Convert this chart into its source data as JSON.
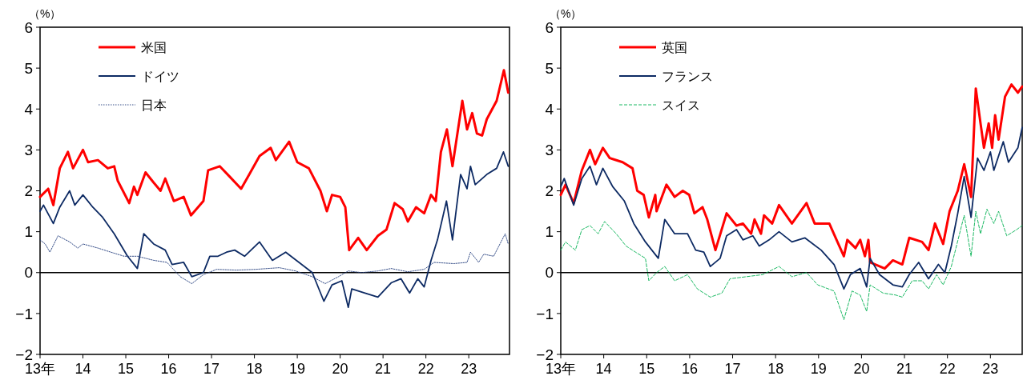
{
  "chart_data": [
    {
      "type": "line",
      "ylabel": "（%）",
      "xlim": [
        13,
        23.95
      ],
      "ylim": [
        -2,
        6
      ],
      "legend": "top left",
      "grid": false,
      "xticks": [
        {
          "value": 13,
          "label": "13年"
        },
        14,
        15,
        16,
        17,
        18,
        19,
        20,
        21,
        22,
        23
      ],
      "yticks": [
        -2,
        -1,
        0,
        1,
        2,
        3,
        4,
        5,
        6
      ],
      "ref_lines": [
        {
          "axis": "y",
          "value": 0,
          "color": "#000000"
        }
      ],
      "series": [
        {
          "name": "米国",
          "color": "#ff0000",
          "line_style": "solid",
          "x": [
            13,
            13.19,
            13.31,
            13.46,
            13.65,
            13.77,
            14,
            14.12,
            14.35,
            14.58,
            14.73,
            14.81,
            15.08,
            15.19,
            15.27,
            15.46,
            15.65,
            15.81,
            15.92,
            16.12,
            16.35,
            16.52,
            16.81,
            16.92,
            17.19,
            17.42,
            17.69,
            17.88,
            18.12,
            18.38,
            18.5,
            18.81,
            19,
            19.27,
            19.54,
            19.69,
            19.81,
            20,
            20.12,
            20.21,
            20.42,
            20.62,
            20.88,
            21.08,
            21.27,
            21.46,
            21.58,
            21.77,
            21.96,
            22.12,
            22.23,
            22.35,
            22.49,
            22.62,
            22.85,
            22.96,
            23.08,
            23.19,
            23.31,
            23.42,
            23.65,
            23.82,
            23.92
          ],
          "values": [
            1.85,
            2.05,
            1.65,
            2.55,
            2.95,
            2.55,
            3.0,
            2.7,
            2.75,
            2.55,
            2.6,
            2.25,
            1.7,
            2.1,
            1.9,
            2.45,
            2.2,
            2.0,
            2.3,
            1.75,
            1.85,
            1.4,
            1.75,
            2.5,
            2.6,
            2.35,
            2.05,
            2.4,
            2.85,
            3.05,
            2.75,
            3.2,
            2.7,
            2.55,
            2.0,
            1.5,
            1.9,
            1.85,
            1.6,
            0.55,
            0.85,
            0.55,
            0.9,
            1.05,
            1.7,
            1.55,
            1.25,
            1.6,
            1.45,
            1.9,
            1.75,
            2.95,
            3.5,
            2.6,
            4.2,
            3.5,
            3.9,
            3.4,
            3.35,
            3.75,
            4.2,
            4.95,
            4.4
          ]
        },
        {
          "name": "ドイツ",
          "color": "#0d2a63",
          "line_style": "solid",
          "x": [
            13,
            13.08,
            13.31,
            13.46,
            13.69,
            13.81,
            14,
            14.23,
            14.46,
            14.73,
            15.04,
            15.27,
            15.42,
            15.65,
            15.92,
            16.08,
            16.35,
            16.54,
            16.81,
            16.96,
            17.15,
            17.35,
            17.54,
            17.77,
            18.12,
            18.42,
            18.73,
            19.04,
            19.35,
            19.62,
            19.81,
            20.04,
            20.19,
            20.27,
            20.58,
            20.88,
            21.19,
            21.42,
            21.62,
            21.81,
            21.96,
            22.12,
            22.27,
            22.48,
            22.62,
            22.81,
            22.96,
            23.04,
            23.15,
            23.42,
            23.65,
            23.81,
            23.92
          ],
          "values": [
            1.5,
            1.65,
            1.2,
            1.6,
            2.0,
            1.65,
            1.9,
            1.6,
            1.35,
            0.95,
            0.4,
            0.1,
            0.95,
            0.7,
            0.55,
            0.2,
            0.25,
            -0.1,
            0.0,
            0.4,
            0.4,
            0.5,
            0.55,
            0.4,
            0.75,
            0.3,
            0.5,
            0.25,
            0.0,
            -0.7,
            -0.3,
            -0.2,
            -0.85,
            -0.4,
            -0.5,
            -0.6,
            -0.25,
            -0.15,
            -0.5,
            -0.15,
            -0.35,
            0.3,
            0.8,
            1.75,
            0.8,
            2.4,
            2.05,
            2.6,
            2.15,
            2.4,
            2.55,
            2.95,
            2.6
          ]
        },
        {
          "name": "日本",
          "color": "#1f3a7a",
          "line_style": "dotted",
          "x": [
            13,
            13.12,
            13.23,
            13.42,
            13.69,
            13.88,
            14,
            14.35,
            14.65,
            14.96,
            15.27,
            15.65,
            15.96,
            16.27,
            16.54,
            16.81,
            17.12,
            17.58,
            18.04,
            18.58,
            18.96,
            19.35,
            19.65,
            19.96,
            20.19,
            20.5,
            20.88,
            21.19,
            21.58,
            21.96,
            22.19,
            22.65,
            22.96,
            23.04,
            23.23,
            23.35,
            23.58,
            23.85,
            23.92
          ],
          "values": [
            0.8,
            0.7,
            0.5,
            0.9,
            0.75,
            0.6,
            0.7,
            0.6,
            0.5,
            0.4,
            0.4,
            0.3,
            0.25,
            -0.1,
            -0.27,
            -0.05,
            0.08,
            0.06,
            0.08,
            0.12,
            0.04,
            -0.1,
            -0.27,
            -0.1,
            0.04,
            0.0,
            0.04,
            0.1,
            0.02,
            0.08,
            0.25,
            0.22,
            0.25,
            0.5,
            0.25,
            0.45,
            0.4,
            0.95,
            0.7
          ]
        }
      ]
    },
    {
      "type": "line",
      "ylabel": "（%）",
      "xlim": [
        13,
        23.74
      ],
      "ylim": [
        -2,
        6
      ],
      "legend": "top left",
      "grid": false,
      "xticks": [
        {
          "value": 13,
          "label": "13年"
        },
        14,
        15,
        16,
        17,
        18,
        19,
        20,
        21,
        22,
        23
      ],
      "yticks": [
        -2,
        -1,
        0,
        1,
        2,
        3,
        4,
        5,
        6
      ],
      "ref_lines": [
        {
          "axis": "y",
          "value": 0,
          "color": "#000000"
        }
      ],
      "series": [
        {
          "name": "英国",
          "color": "#ff0000",
          "line_style": "solid",
          "x": [
            13,
            13.11,
            13.3,
            13.49,
            13.68,
            13.8,
            13.98,
            14.14,
            14.44,
            14.67,
            14.78,
            14.93,
            15.05,
            15.2,
            15.23,
            15.46,
            15.65,
            15.84,
            15.99,
            16.11,
            16.3,
            16.41,
            16.6,
            16.86,
            17.09,
            17.24,
            17.43,
            17.51,
            17.66,
            17.73,
            17.92,
            18.08,
            18.38,
            18.72,
            18.91,
            19.25,
            19.44,
            19.59,
            19.67,
            19.86,
            19.97,
            20.08,
            20.16,
            20.2,
            20.54,
            20.73,
            20.95,
            21.11,
            21.41,
            21.56,
            21.71,
            21.9,
            22.05,
            22.24,
            22.39,
            22.55,
            22.66,
            22.77,
            22.85,
            22.96,
            23.04,
            23.11,
            23.19,
            23.34,
            23.49,
            23.64,
            23.74
          ],
          "values": [
            1.9,
            2.15,
            1.7,
            2.5,
            3.0,
            2.65,
            3.05,
            2.8,
            2.7,
            2.55,
            2.0,
            1.9,
            1.35,
            1.9,
            1.5,
            2.15,
            1.85,
            2.0,
            1.9,
            1.45,
            1.6,
            1.3,
            0.55,
            1.45,
            1.15,
            1.2,
            0.95,
            1.3,
            0.95,
            1.4,
            1.2,
            1.65,
            1.2,
            1.7,
            1.2,
            1.2,
            0.75,
            0.4,
            0.8,
            0.6,
            0.8,
            0.4,
            0.8,
            0.25,
            0.1,
            0.3,
            0.2,
            0.85,
            0.75,
            0.55,
            1.2,
            0.7,
            1.5,
            2.0,
            2.65,
            1.85,
            4.5,
            3.65,
            3.05,
            3.65,
            3.05,
            3.85,
            3.25,
            4.3,
            4.6,
            4.4,
            4.55
          ]
        },
        {
          "name": "フランス",
          "color": "#0d2a63",
          "line_style": "solid",
          "x": [
            13,
            13.08,
            13.3,
            13.49,
            13.68,
            13.83,
            13.98,
            14.21,
            14.48,
            14.7,
            14.97,
            15.27,
            15.42,
            15.65,
            15.95,
            16.14,
            16.33,
            16.48,
            16.71,
            16.86,
            17.09,
            17.24,
            17.47,
            17.62,
            17.85,
            18.08,
            18.38,
            18.68,
            19.06,
            19.36,
            19.59,
            19.74,
            19.97,
            20.12,
            20.2,
            20.42,
            20.73,
            20.95,
            21.11,
            21.33,
            21.56,
            21.79,
            21.94,
            22.09,
            22.24,
            22.39,
            22.55,
            22.7,
            22.85,
            23,
            23.08,
            23.3,
            23.42,
            23.64,
            23.74
          ],
          "values": [
            2.1,
            2.3,
            1.65,
            2.3,
            2.6,
            2.15,
            2.55,
            2.1,
            1.75,
            1.2,
            0.75,
            0.35,
            1.3,
            0.95,
            0.95,
            0.55,
            0.5,
            0.15,
            0.35,
            0.9,
            1.05,
            0.8,
            0.9,
            0.65,
            0.8,
            1.0,
            0.75,
            0.85,
            0.55,
            0.2,
            -0.4,
            -0.05,
            0.1,
            -0.35,
            0.35,
            -0.05,
            -0.3,
            -0.35,
            -0.05,
            0.25,
            -0.15,
            0.2,
            0.0,
            0.65,
            1.45,
            2.35,
            1.35,
            2.8,
            2.5,
            2.95,
            2.5,
            3.2,
            2.7,
            3.05,
            3.55
          ]
        },
        {
          "name": "スイス",
          "color": "#00b050",
          "line_style": "dashed",
          "x": [
            13,
            13.11,
            13.34,
            13.49,
            13.68,
            13.87,
            14.02,
            14.29,
            14.52,
            14.74,
            14.97,
            15.05,
            15.23,
            15.42,
            15.65,
            15.95,
            16.18,
            16.48,
            16.75,
            16.94,
            17.32,
            17.7,
            18.08,
            18.38,
            18.72,
            18.98,
            19.36,
            19.59,
            19.78,
            19.97,
            20.12,
            20.2,
            20.5,
            20.8,
            20.95,
            21.18,
            21.41,
            21.56,
            21.75,
            21.9,
            22.09,
            22.39,
            22.55,
            22.66,
            22.77,
            22.92,
            23.08,
            23.19,
            23.38,
            23.61,
            23.74
          ],
          "values": [
            0.55,
            0.75,
            0.55,
            1.05,
            1.15,
            0.95,
            1.25,
            0.95,
            0.65,
            0.5,
            0.35,
            -0.2,
            0.0,
            0.15,
            -0.2,
            -0.05,
            -0.4,
            -0.6,
            -0.5,
            -0.15,
            -0.1,
            -0.05,
            0.15,
            -0.1,
            0.0,
            -0.3,
            -0.45,
            -1.15,
            -0.45,
            -0.55,
            -0.95,
            -0.3,
            -0.5,
            -0.55,
            -0.6,
            -0.2,
            -0.2,
            -0.4,
            -0.05,
            -0.3,
            0.15,
            1.4,
            0.4,
            1.5,
            0.95,
            1.55,
            1.2,
            1.5,
            0.9,
            1.05,
            1.15
          ]
        }
      ]
    }
  ]
}
